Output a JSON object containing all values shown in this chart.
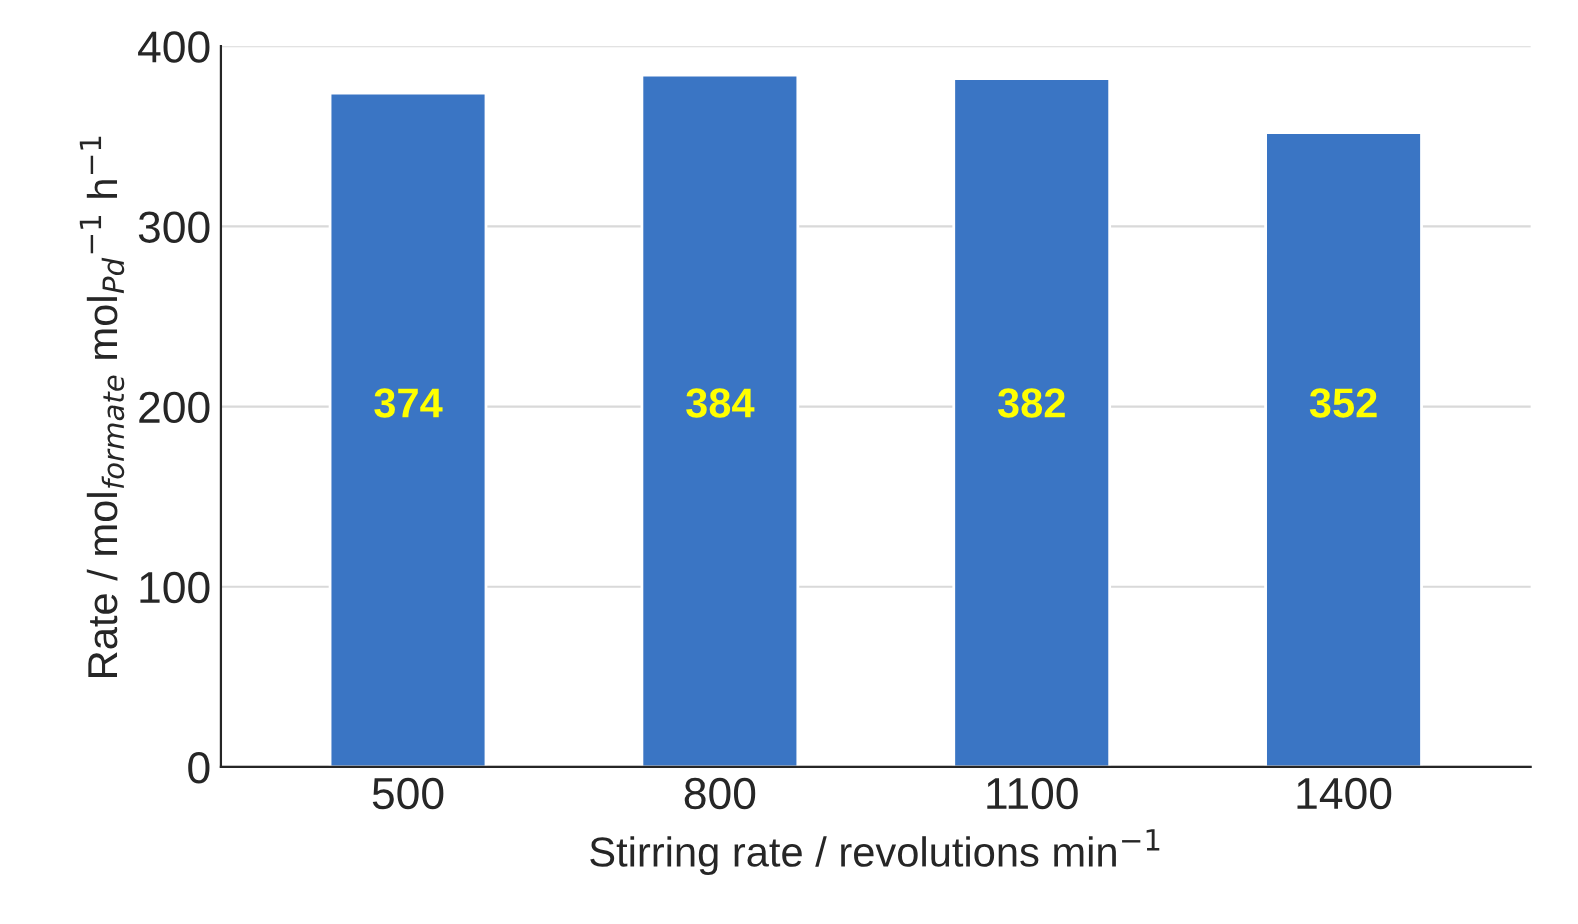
{
  "chart_data": {
    "type": "bar",
    "categories": [
      "500",
      "800",
      "1100",
      "1400"
    ],
    "values": [
      374,
      384,
      382,
      352
    ],
    "color": "#3a75c4",
    "xlabel": "Stirring rate / revolutions min$^{−1}$",
    "ylabel": "Rate / mol$_{formate}$ mol$_{Pd}$$^{−1}$ h$^{−1}$",
    "ylim": [
      0,
      400
    ],
    "yticks": [
      0,
      100,
      200,
      300,
      400
    ],
    "grid": "y",
    "data_labels": true
  }
}
